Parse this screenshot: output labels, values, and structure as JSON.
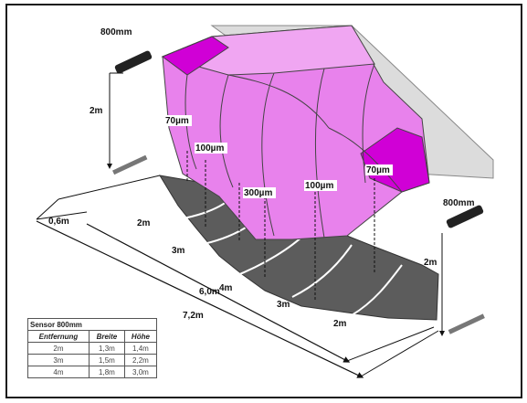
{
  "sensor_labels": {
    "top": "800mm",
    "right": "800mm"
  },
  "heights": {
    "top_sensor": "2m",
    "right_sensor": "2m"
  },
  "width_labels": [
    "70µm",
    "100µm",
    "300µm",
    "100µm",
    "70µm"
  ],
  "distance_markers": [
    "2m",
    "3m",
    "4m",
    "3m",
    "2m"
  ],
  "dimensions": {
    "small": "0,6m",
    "middle": "6,0m",
    "long": "7,2m"
  },
  "table": {
    "title": "Sensor 800mm",
    "headers": [
      "Entfernung",
      "Breite",
      "Höhe"
    ],
    "rows": [
      [
        "2m",
        "1,3m",
        "1,4m"
      ],
      [
        "3m",
        "1,5m",
        "2,2m"
      ],
      [
        "4m",
        "1,8m",
        "3,0m"
      ]
    ]
  },
  "colors": {
    "cone": "#e070e6",
    "cone_dark": "#d000d6",
    "shadow": "#5a5a5a",
    "backplane": "#dcdcdc"
  }
}
